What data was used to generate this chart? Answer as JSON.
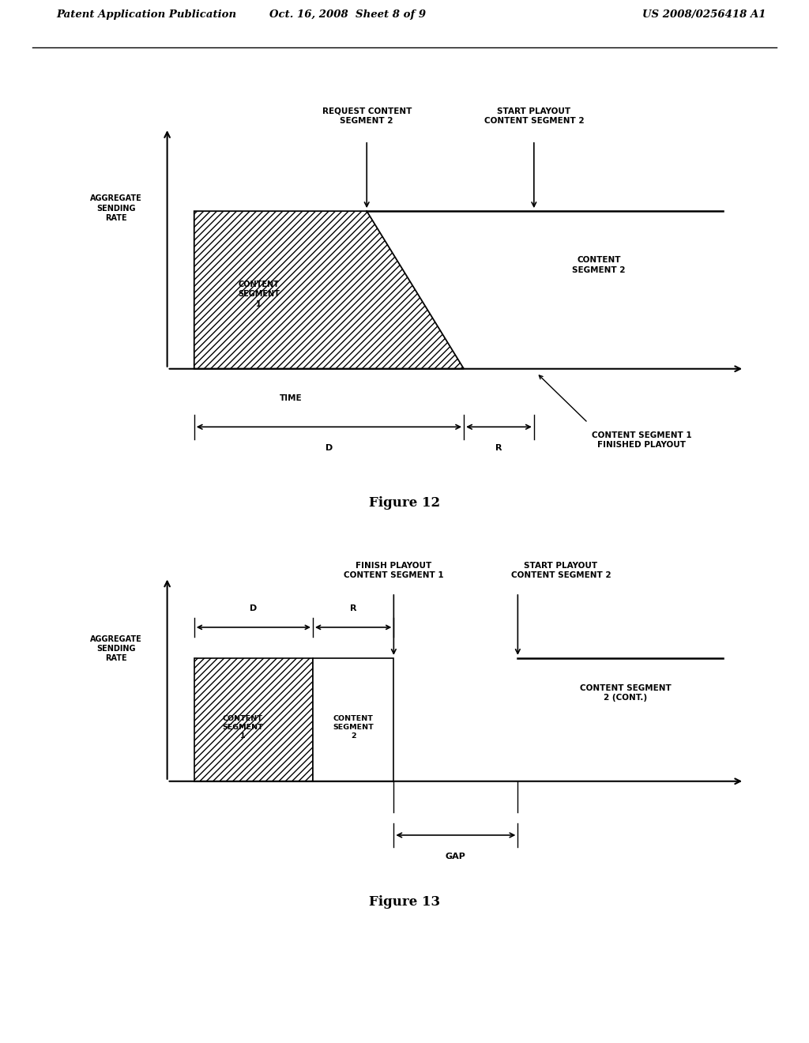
{
  "header_left": "Patent Application Publication",
  "header_center": "Oct. 16, 2008  Sheet 8 of 9",
  "header_right": "US 2008/0256418 A1",
  "fig12_caption": "Figure 12",
  "fig13_caption": "Figure 13",
  "bg_color": "#ffffff"
}
